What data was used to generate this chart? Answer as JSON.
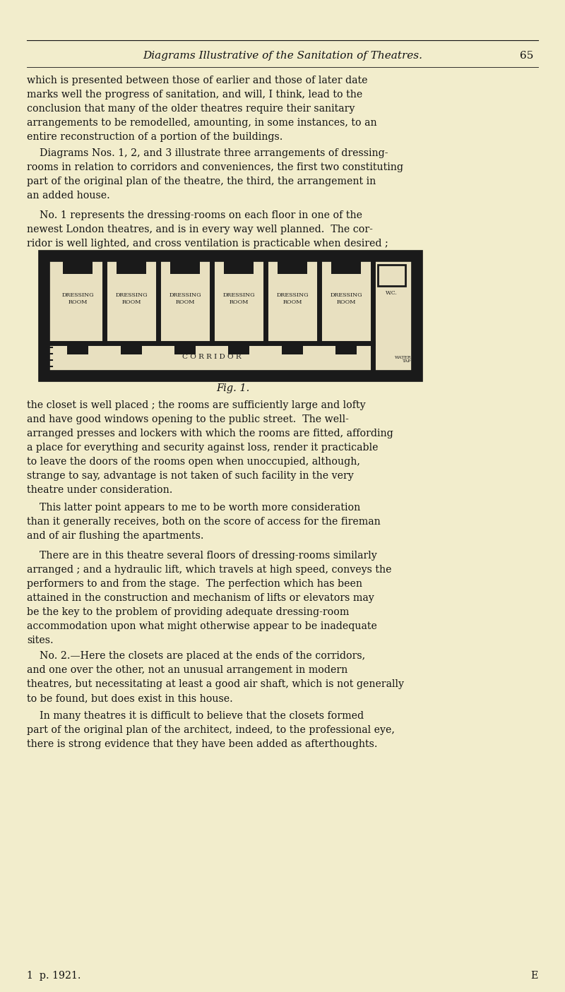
{
  "page_bg": "#f2edcc",
  "text_color": "#111111",
  "header_title": "Diagrams Illustrative of the Sanitation of Theatres.",
  "header_page": "65",
  "fig_caption": "Fig. 1.",
  "footer_left": "1  p. 1921.",
  "footer_right": "E"
}
